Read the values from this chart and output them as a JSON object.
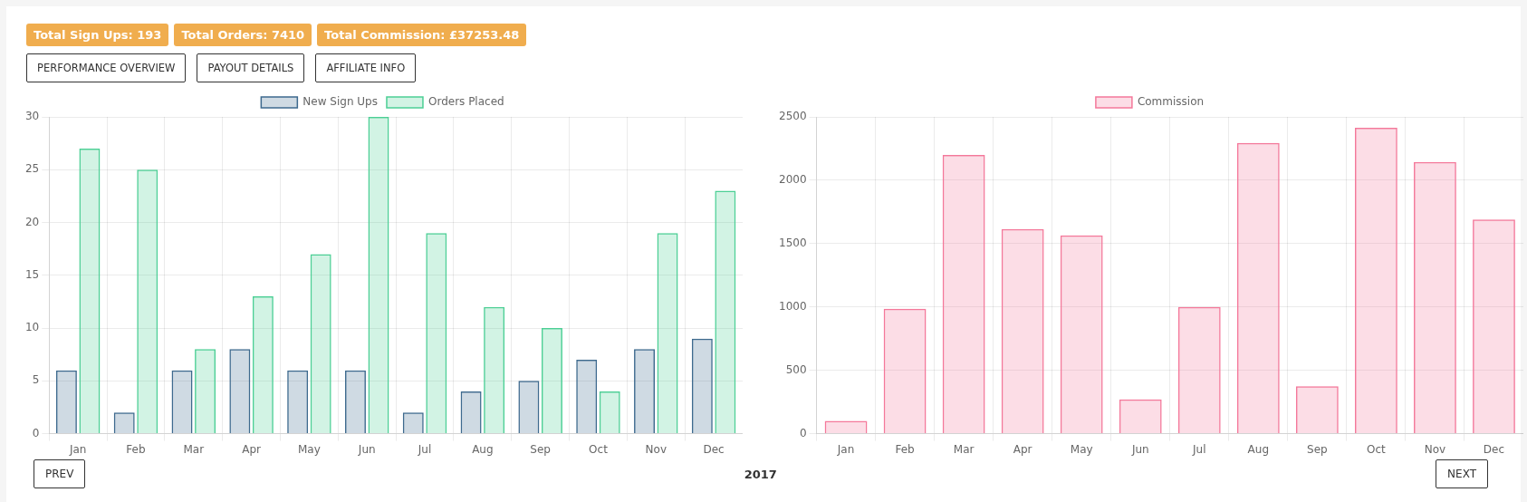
{
  "chart_data": [
    {
      "type": "other",
      "annotations": [
        "Total Sign Ups: 193",
        "Total Orders: 7410",
        "Total Commission: £37253.48"
      ]
    },
    {
      "type": "other",
      "annotations": [
        "PERFORMANCE OVERVIEW",
        "PAYOUT DETAILS",
        "AFFILIATE INFO"
      ]
    },
    {
      "type": "bar",
      "categories": [
        "Jan",
        "Feb",
        "Mar",
        "Apr",
        "May",
        "Jun",
        "Jul",
        "Aug",
        "Sep",
        "Oct",
        "Nov",
        "Dec"
      ],
      "series": [
        {
          "name": "New Sign Ups",
          "color": "#3e6a8e",
          "values": [
            6,
            2,
            6,
            8,
            6,
            6,
            2,
            4,
            5,
            7,
            8,
            9
          ]
        },
        {
          "name": "Orders Placed",
          "color": "#4ccf95",
          "values": [
            27,
            25,
            8,
            13,
            17,
            30,
            19,
            12,
            10,
            4,
            19,
            23
          ]
        }
      ],
      "ylim": [
        0,
        30
      ],
      "yticks": [
        0,
        5,
        10,
        15,
        20,
        25,
        30
      ],
      "grid": true,
      "legend": "top"
    },
    {
      "type": "bar",
      "categories": [
        "Jan",
        "Feb",
        "Mar",
        "Apr",
        "May",
        "Jun",
        "Jul",
        "Aug",
        "Sep",
        "Oct",
        "Nov",
        "Dec"
      ],
      "series": [
        {
          "name": "Commission",
          "color": "#f4789a",
          "values": [
            100,
            985,
            2200,
            1615,
            1565,
            270,
            1000,
            2295,
            375,
            2415,
            2145,
            1690
          ]
        }
      ],
      "ylim": [
        0,
        2500
      ],
      "yticks": [
        0,
        500,
        1000,
        1500,
        2000,
        2500
      ],
      "grid": true,
      "legend": "top"
    },
    {
      "type": "other",
      "annotations": [
        "PREV",
        "2017",
        "NEXT"
      ]
    }
  ]
}
